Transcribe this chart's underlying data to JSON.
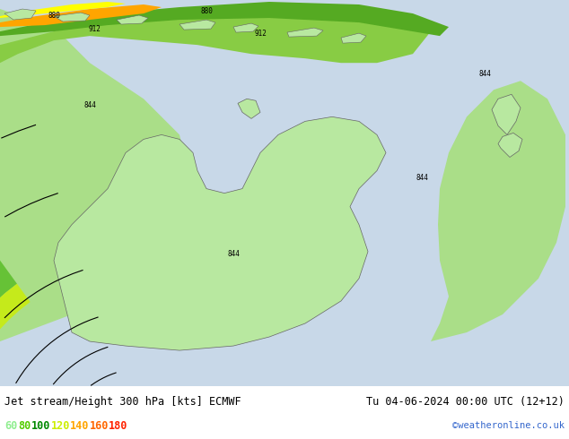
{
  "title_left": "Jet stream/Height 300 hPa [kts] ECMWF",
  "title_right": "Tu 04-06-2024 00:00 UTC (12+12)",
  "credit": "©weatheronline.co.uk",
  "legend_values": [
    60,
    80,
    100,
    120,
    140,
    160,
    180
  ],
  "legend_colors": [
    "#90ee90",
    "#00cc00",
    "#008800",
    "#ffff00",
    "#ffa500",
    "#ff4500",
    "#ff0000"
  ],
  "bg_color": "#d0d8e8",
  "land_color": "#90ee90",
  "land_border": "#555555",
  "figsize": [
    6.34,
    4.9
  ],
  "dpi": 100,
  "map_bg": "#c8d8e8"
}
